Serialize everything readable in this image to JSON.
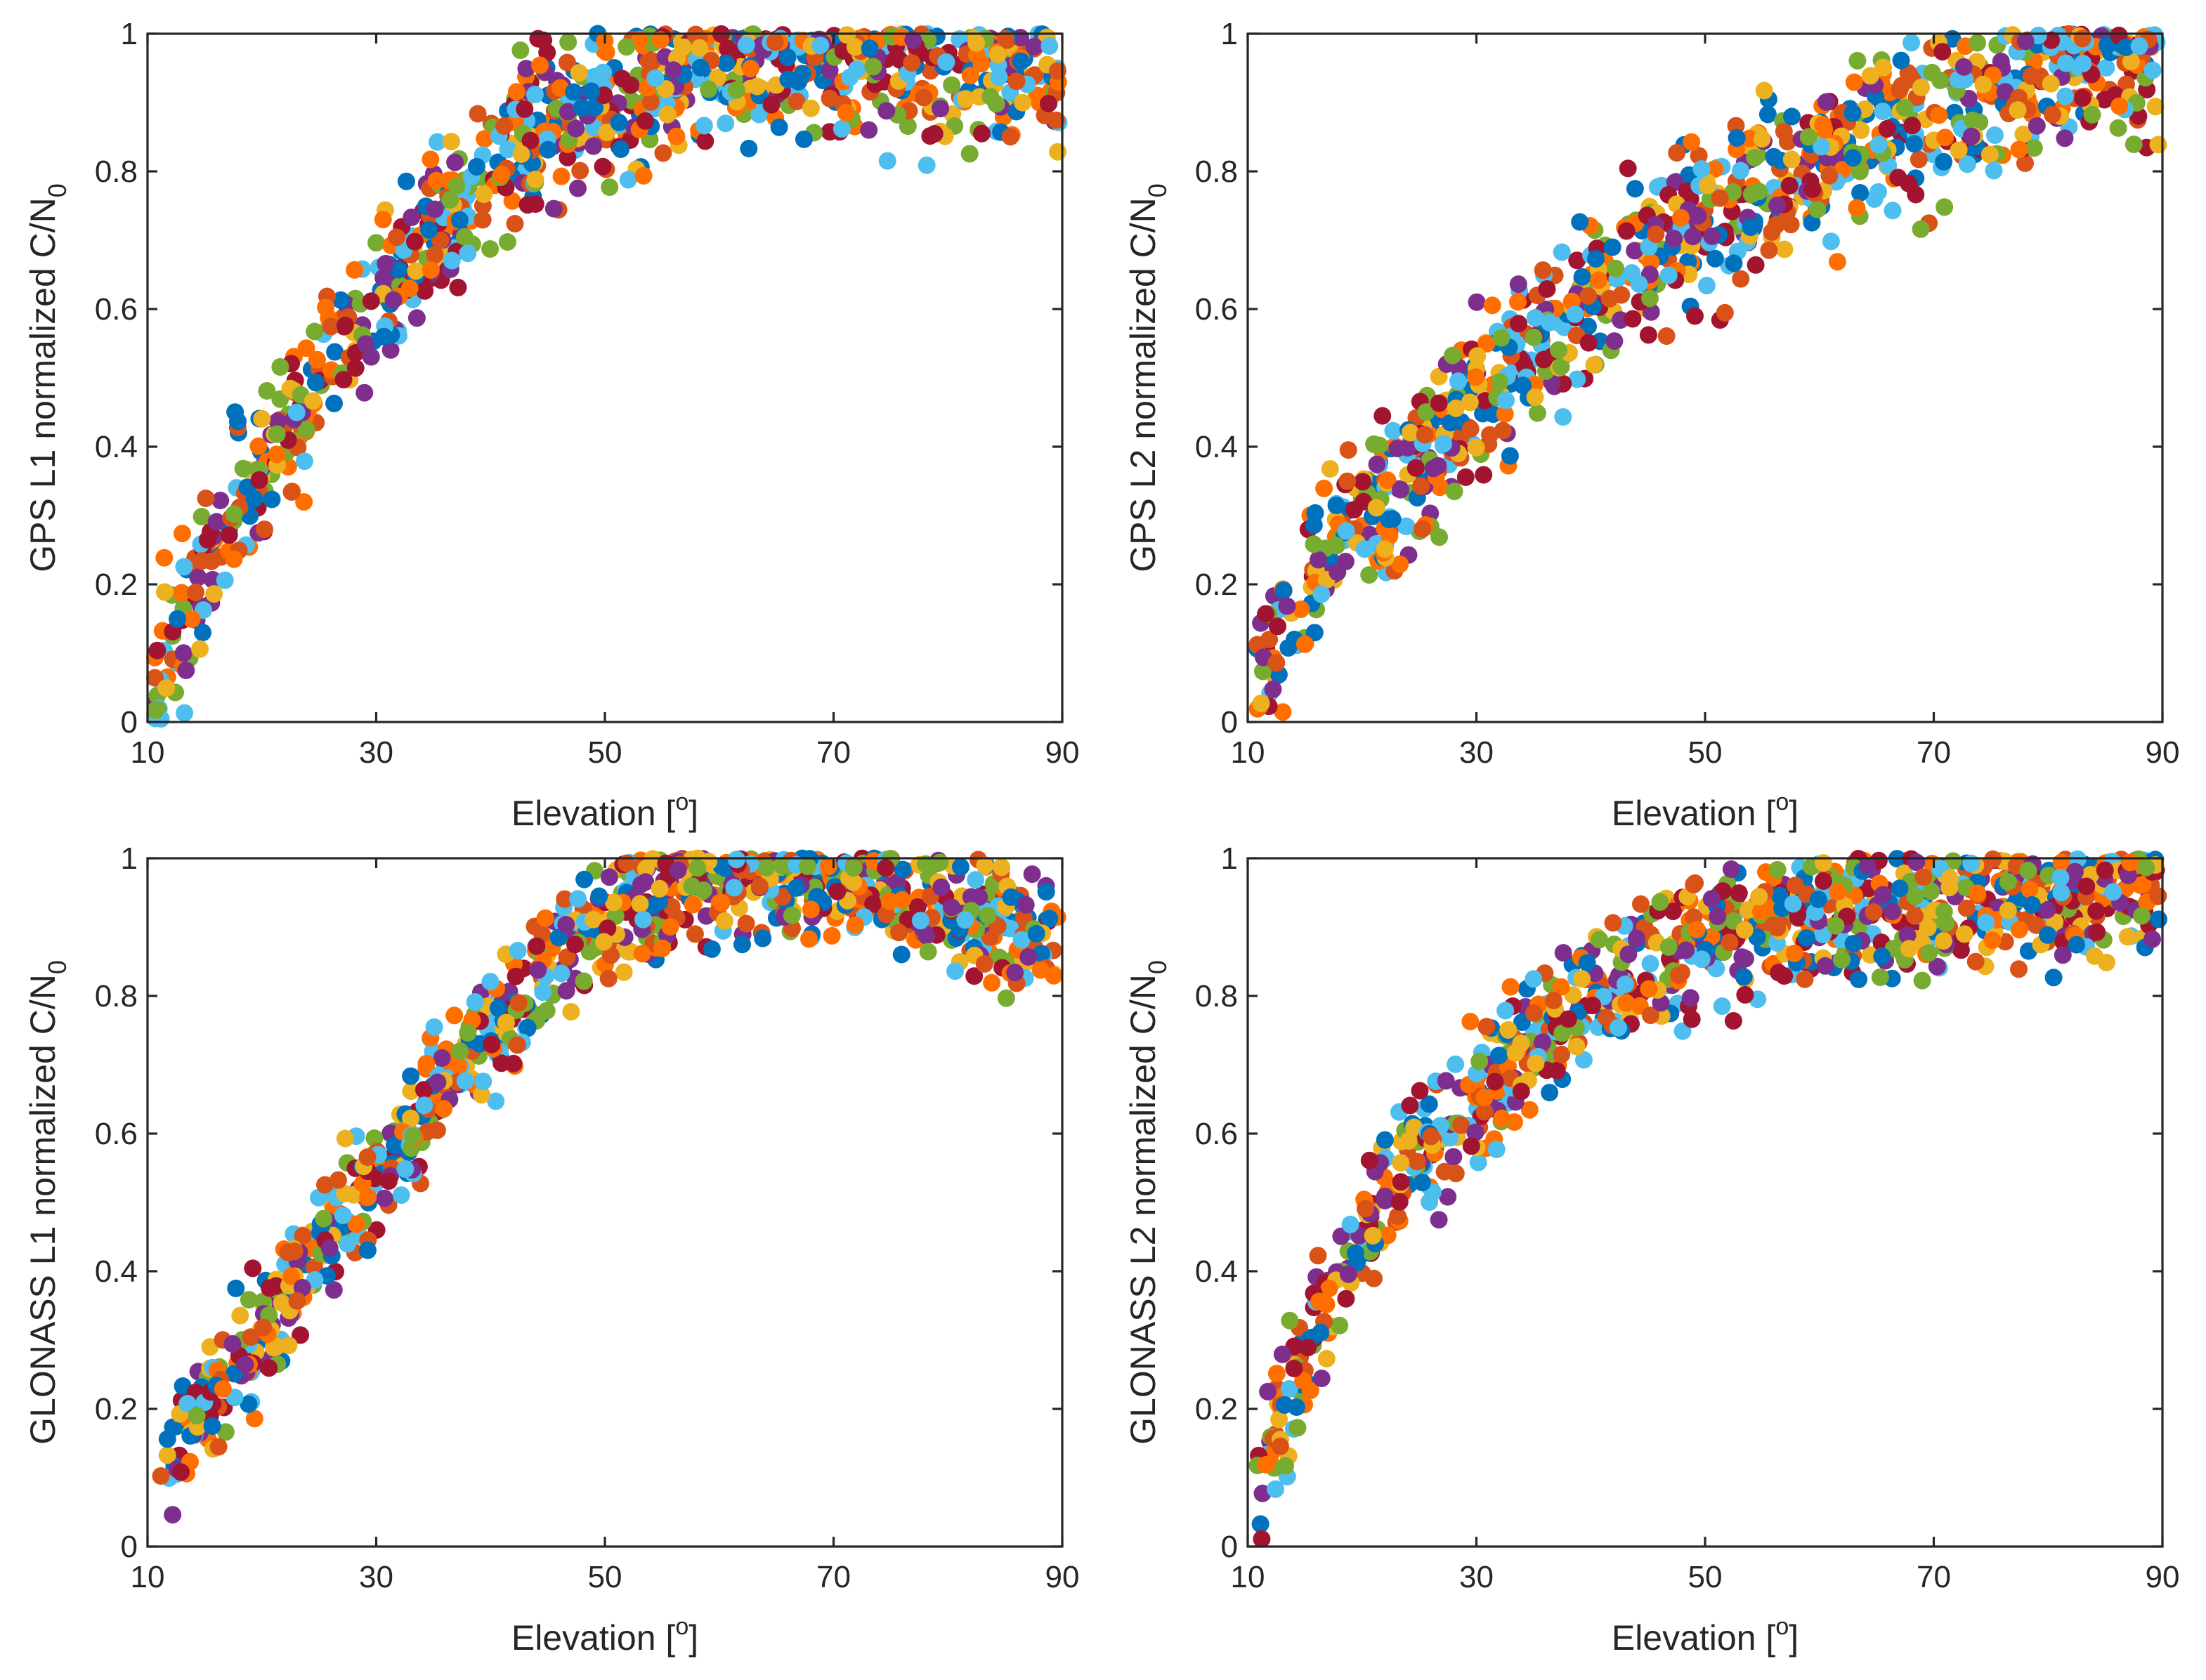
{
  "colors": [
    "#0072bd",
    "#d95319",
    "#edb120",
    "#7e2f8e",
    "#77ac30",
    "#4dbeee",
    "#a2142f",
    "#ff6f00"
  ],
  "chart_data": [
    {
      "type": "scatter",
      "title": "",
      "xlabel": "Elevation [",
      "xlabel_sup": "o",
      "xlabel_end": "]",
      "ylabel": "GPS L1 normalized C/N",
      "ylabel_sub": "0",
      "xlim": [
        10,
        90
      ],
      "ylim": [
        0,
        1
      ],
      "xticks": [
        10,
        30,
        50,
        70,
        90
      ],
      "yticks": [
        0,
        0.2,
        0.4,
        0.6,
        0.8,
        1
      ],
      "xtick_labels": [
        "10",
        "30",
        "50",
        "70",
        "90"
      ],
      "ytick_labels": [
        "0",
        "0.2",
        "0.4",
        "0.6",
        "0.8",
        "1"
      ],
      "curve": {
        "rise": [
          [
            10,
            0.05
          ],
          [
            14,
            0.18
          ],
          [
            18,
            0.3
          ],
          [
            22,
            0.42
          ],
          [
            26,
            0.53
          ],
          [
            30,
            0.62
          ],
          [
            34,
            0.7
          ],
          [
            38,
            0.77
          ],
          [
            42,
            0.83
          ],
          [
            46,
            0.87
          ],
          [
            50,
            0.9
          ],
          [
            55,
            0.93
          ],
          [
            60,
            0.95
          ],
          [
            65,
            0.96
          ],
          [
            70,
            0.96
          ],
          [
            75,
            0.96
          ],
          [
            80,
            0.95
          ],
          [
            85,
            0.94
          ],
          [
            90,
            0.93
          ]
        ],
        "spread": 0.09,
        "n": 950,
        "seed": 11
      }
    },
    {
      "type": "scatter",
      "title": "",
      "xlabel": "Elevation [",
      "xlabel_sup": "o",
      "xlabel_end": "]",
      "ylabel": "GPS L2 normalized C/N",
      "ylabel_sub": "0",
      "xlim": [
        10,
        90
      ],
      "ylim": [
        0,
        1
      ],
      "xticks": [
        10,
        30,
        50,
        70,
        90
      ],
      "yticks": [
        0,
        0.2,
        0.4,
        0.6,
        0.8,
        1
      ],
      "xtick_labels": [
        "10",
        "30",
        "50",
        "70",
        "90"
      ],
      "ytick_labels": [
        "0",
        "0.2",
        "0.4",
        "0.6",
        "0.8",
        "1"
      ],
      "curve": {
        "rise": [
          [
            10,
            0.05
          ],
          [
            14,
            0.17
          ],
          [
            18,
            0.26
          ],
          [
            22,
            0.33
          ],
          [
            26,
            0.4
          ],
          [
            30,
            0.47
          ],
          [
            34,
            0.53
          ],
          [
            38,
            0.59
          ],
          [
            42,
            0.64
          ],
          [
            46,
            0.69
          ],
          [
            50,
            0.73
          ],
          [
            55,
            0.78
          ],
          [
            60,
            0.82
          ],
          [
            65,
            0.86
          ],
          [
            70,
            0.89
          ],
          [
            75,
            0.92
          ],
          [
            80,
            0.95
          ],
          [
            85,
            0.97
          ],
          [
            90,
            0.98
          ]
        ],
        "spread": 0.1,
        "n": 950,
        "seed": 23
      }
    },
    {
      "type": "scatter",
      "title": "",
      "xlabel": "Elevation [",
      "xlabel_sup": "o",
      "xlabel_end": "]",
      "ylabel": "GLONASS L1 normalized C/N",
      "ylabel_sub": "0",
      "xlim": [
        10,
        90
      ],
      "ylim": [
        0,
        1
      ],
      "xticks": [
        10,
        30,
        50,
        70,
        90
      ],
      "yticks": [
        0,
        0.2,
        0.4,
        0.6,
        0.8,
        1
      ],
      "xtick_labels": [
        "10",
        "30",
        "50",
        "70",
        "90"
      ],
      "ytick_labels": [
        "0",
        "0.2",
        "0.4",
        "0.6",
        "0.8",
        "1"
      ],
      "curve": {
        "rise": [
          [
            10,
            0.06
          ],
          [
            14,
            0.18
          ],
          [
            18,
            0.27
          ],
          [
            22,
            0.36
          ],
          [
            26,
            0.45
          ],
          [
            30,
            0.54
          ],
          [
            34,
            0.63
          ],
          [
            38,
            0.71
          ],
          [
            42,
            0.79
          ],
          [
            46,
            0.86
          ],
          [
            50,
            0.91
          ],
          [
            55,
            0.95
          ],
          [
            60,
            0.97
          ],
          [
            65,
            0.98
          ],
          [
            70,
            0.97
          ],
          [
            75,
            0.95
          ],
          [
            80,
            0.93
          ],
          [
            85,
            0.91
          ],
          [
            90,
            0.9
          ]
        ],
        "spread": 0.07,
        "n": 950,
        "seed": 37
      }
    },
    {
      "type": "scatter",
      "title": "",
      "xlabel": "Elevation [",
      "xlabel_sup": "o",
      "xlabel_end": "]",
      "ylabel": "GLONASS L2 normalized C/N",
      "ylabel_sub": "0",
      "xlim": [
        10,
        90
      ],
      "ylim": [
        0,
        1
      ],
      "xticks": [
        10,
        30,
        50,
        70,
        90
      ],
      "yticks": [
        0,
        0.2,
        0.4,
        0.6,
        0.8,
        1
      ],
      "xtick_labels": [
        "10",
        "30",
        "50",
        "70",
        "90"
      ],
      "ytick_labels": [
        "0",
        "0.2",
        "0.4",
        "0.6",
        "0.8",
        "1"
      ],
      "curve": {
        "rise": [
          [
            10,
            0.04
          ],
          [
            13,
            0.2
          ],
          [
            16,
            0.33
          ],
          [
            20,
            0.45
          ],
          [
            24,
            0.56
          ],
          [
            28,
            0.64
          ],
          [
            32,
            0.7
          ],
          [
            36,
            0.75
          ],
          [
            40,
            0.8
          ],
          [
            45,
            0.85
          ],
          [
            50,
            0.89
          ],
          [
            55,
            0.91
          ],
          [
            60,
            0.92
          ],
          [
            65,
            0.93
          ],
          [
            70,
            0.93
          ],
          [
            75,
            0.94
          ],
          [
            80,
            0.94
          ],
          [
            85,
            0.95
          ],
          [
            90,
            0.96
          ]
        ],
        "spread": 0.08,
        "n": 950,
        "seed": 53
      }
    }
  ]
}
